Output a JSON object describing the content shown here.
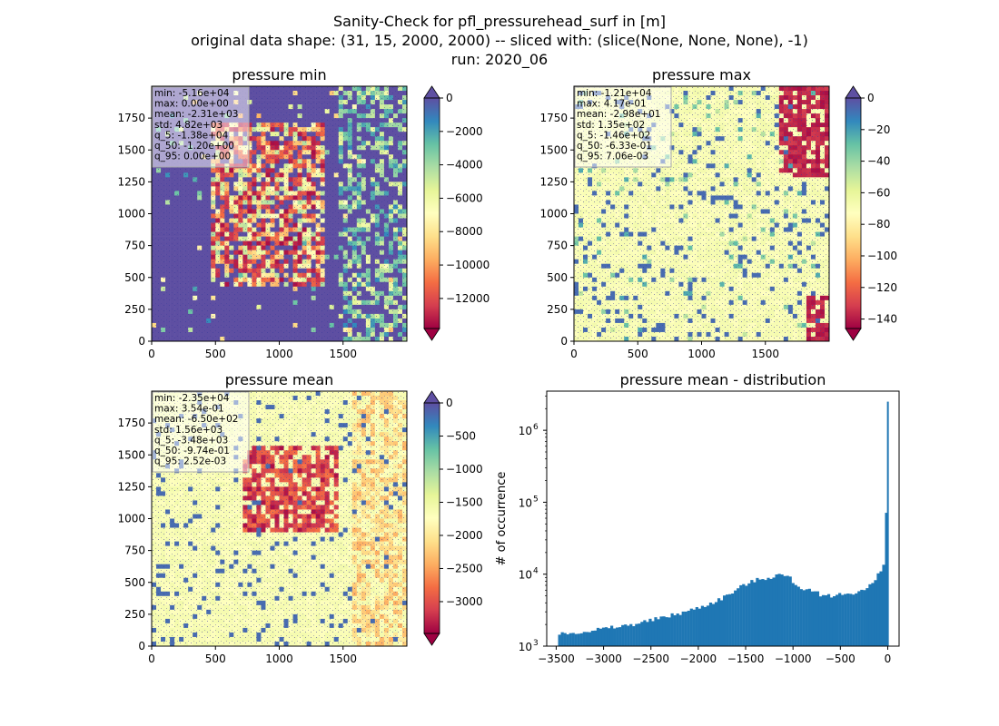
{
  "figure": {
    "title_lines": [
      "Sanity-Check for pfl_pressurehead_surf in [m]",
      "original data shape: (31, 15, 2000, 2000) -- sliced with: (slice(None, None, None), -1)",
      "run: 2020_06"
    ]
  },
  "colors": {
    "spectral_stops": [
      "#9e0142",
      "#d53e4f",
      "#f46d43",
      "#fdae61",
      "#fee08b",
      "#ffffbf",
      "#e6f598",
      "#abdda4",
      "#66c2a5",
      "#3288bd",
      "#5e4fa2"
    ],
    "bar_color": "#1f77b4"
  },
  "panels": [
    {
      "title": "pressure min",
      "xticks": [
        "0",
        "500",
        "1000",
        "1500"
      ],
      "yticks": [
        "0",
        "250",
        "500",
        "750",
        "1000",
        "1250",
        "1500",
        "1750"
      ],
      "stats": [
        "min: -5.16e+04",
        "max: 0.00e+00",
        "mean: -2.31e+03",
        "std: 4.82e+03",
        "q_5: -1.38e+04",
        "q_50: -1.20e+00",
        "q_95: 0.00e+00"
      ],
      "colorbar": {
        "ticks": [
          0,
          -2000,
          -4000,
          -6000,
          -8000,
          -10000,
          -12000
        ],
        "labels": [
          "0",
          "−2000",
          "−4000",
          "−6000",
          "−8000",
          "−10000",
          "−12000"
        ],
        "range": [
          -13800,
          0
        ],
        "extend_top_color": "#5e4fa2",
        "extend_bottom_color": "#9e0142"
      }
    },
    {
      "title": "pressure max",
      "xticks": [
        "0",
        "500",
        "1000",
        "1500"
      ],
      "yticks": [
        "0",
        "250",
        "500",
        "750",
        "1000",
        "1250",
        "1500",
        "1750"
      ],
      "stats": [
        "min: -1.21e+04",
        "max: 4.17e-01",
        "mean: -2.98e+01",
        "std: 1.35e+02",
        "q_5: -1.46e+02",
        "q_50: -6.33e-01",
        "q_95: 7.06e-03"
      ],
      "colorbar": {
        "ticks": [
          0,
          -20,
          -40,
          -60,
          -80,
          -100,
          -120,
          -140
        ],
        "labels": [
          "0",
          "−20",
          "−40",
          "−60",
          "−80",
          "−100",
          "−120",
          "−140"
        ],
        "range": [
          -146,
          0
        ],
        "extend_top_color": "#5e4fa2",
        "extend_bottom_color": "#9e0142"
      }
    },
    {
      "title": "pressure mean",
      "xticks": [
        "0",
        "500",
        "1000",
        "1500"
      ],
      "yticks": [
        "0",
        "250",
        "500",
        "750",
        "1000",
        "1250",
        "1500",
        "1750"
      ],
      "stats": [
        "min: -2.35e+04",
        "max: 3.54e-01",
        "mean: -6.50e+02",
        "std: 1.56e+03",
        "q_5: -3.48e+03",
        "q_50: -9.74e-01",
        "q_95: 2.52e-03"
      ],
      "colorbar": {
        "ticks": [
          0,
          -500,
          -1000,
          -1500,
          -2000,
          -2500,
          -3000
        ],
        "labels": [
          "0",
          "−500",
          "−1000",
          "−1500",
          "−2000",
          "−2500",
          "−3000"
        ],
        "range": [
          -3480,
          0
        ],
        "extend_top_color": "#5e4fa2",
        "extend_bottom_color": "#9e0142"
      }
    }
  ],
  "chart_data": [
    {
      "type": "heatmap",
      "title": "pressure min",
      "x_range": [
        0,
        2000
      ],
      "y_range": [
        0,
        2000
      ],
      "value_range": [
        -13800,
        0
      ],
      "colormap": "Spectral"
    },
    {
      "type": "heatmap",
      "title": "pressure max",
      "x_range": [
        0,
        2000
      ],
      "y_range": [
        0,
        2000
      ],
      "value_range": [
        -146,
        0
      ],
      "colormap": "Spectral"
    },
    {
      "type": "heatmap",
      "title": "pressure mean",
      "x_range": [
        0,
        2000
      ],
      "y_range": [
        0,
        2000
      ],
      "value_range": [
        -3480,
        0
      ],
      "colormap": "Spectral"
    },
    {
      "type": "bar",
      "title": "pressure mean - distribution",
      "xlabel": "",
      "ylabel": "# of occurrence",
      "xticks": [
        "−3500",
        "−3000",
        "−2500",
        "−2000",
        "−1500",
        "−1000",
        "−500",
        "0"
      ],
      "yticks": [
        "10",
        "10",
        "10",
        "10"
      ],
      "yticks_exp": [
        "3",
        "4",
        "5",
        "6"
      ],
      "x_range": [
        -3600,
        120
      ],
      "y_range": [
        1000,
        3500000
      ],
      "y_scale": "log",
      "bin_start": -3480,
      "bin_width": 29,
      "bins": [
        {
          "x": -3450,
          "y": 1450
        },
        {
          "x": -3300,
          "y": 1550
        },
        {
          "x": -3150,
          "y": 1650
        },
        {
          "x": -3000,
          "y": 1750
        },
        {
          "x": -2850,
          "y": 1850
        },
        {
          "x": -2700,
          "y": 2000
        },
        {
          "x": -2550,
          "y": 2200
        },
        {
          "x": -2400,
          "y": 2450
        },
        {
          "x": -2250,
          "y": 2750
        },
        {
          "x": -2100,
          "y": 3100
        },
        {
          "x": -1950,
          "y": 3600
        },
        {
          "x": -1800,
          "y": 4300
        },
        {
          "x": -1650,
          "y": 5500
        },
        {
          "x": -1500,
          "y": 7300
        },
        {
          "x": -1350,
          "y": 8600
        },
        {
          "x": -1250,
          "y": 9000
        },
        {
          "x": -1150,
          "y": 9900
        },
        {
          "x": -1050,
          "y": 9300
        },
        {
          "x": -950,
          "y": 6800
        },
        {
          "x": -800,
          "y": 5700
        },
        {
          "x": -650,
          "y": 5000
        },
        {
          "x": -500,
          "y": 5200
        },
        {
          "x": -350,
          "y": 5600
        },
        {
          "x": -250,
          "y": 6000
        },
        {
          "x": -150,
          "y": 7500
        },
        {
          "x": -60,
          "y": 12000
        },
        {
          "x": -20,
          "y": 19000
        },
        {
          "x": 0,
          "y": 2500000
        }
      ]
    }
  ]
}
